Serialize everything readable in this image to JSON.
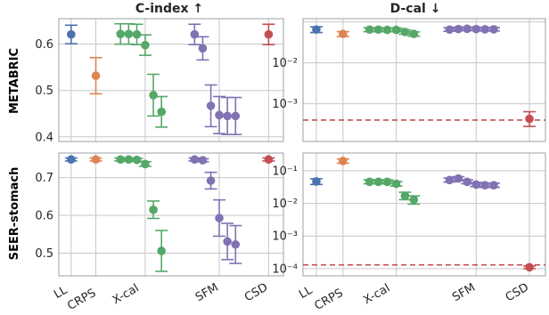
{
  "colors": {
    "LL": "#4c72b0",
    "CRPS": "#dd8452",
    "X-cal": "#55a868",
    "SFM": "#8172b3",
    "CSD": "#c44e52",
    "reference_line": "#c44e52",
    "panel_background": "#eaeaf2"
  },
  "column_titles": [
    "C-index ↑",
    "D-cal ↓"
  ],
  "row_titles": [
    "METABRIC",
    "SEER-stomach"
  ],
  "x_tick_labels": [
    "LL",
    "CRPS",
    "X-cal",
    "SFM",
    "CSD"
  ],
  "chart_data": [
    {
      "type": "scatter",
      "panel": "METABRIC / C-index",
      "ylim": [
        0.39,
        0.655
      ],
      "yscale": "linear",
      "yticks": [
        "0.4",
        "0.5",
        "0.6"
      ],
      "grid": true,
      "series": [
        {
          "method": "LL",
          "x": [
            1
          ],
          "y": [
            0.621
          ],
          "err": [
            0.02
          ]
        },
        {
          "method": "CRPS",
          "x": [
            2
          ],
          "y": [
            0.532
          ],
          "err": [
            0.039
          ]
        },
        {
          "method": "X-cal",
          "x": [
            3,
            3.33,
            3.66,
            4,
            4.33,
            4.66
          ],
          "y": [
            0.622,
            0.622,
            0.621,
            0.598,
            0.49,
            0.454
          ],
          "err": [
            0.022,
            0.022,
            0.022,
            0.022,
            0.045,
            0.033
          ]
        },
        {
          "method": "SFM",
          "x": [
            6,
            6.33,
            6.66,
            7,
            7.33,
            7.66
          ],
          "y": [
            0.621,
            0.591,
            0.467,
            0.447,
            0.445,
            0.445
          ],
          "err": [
            0.022,
            0.025,
            0.045,
            0.04,
            0.04,
            0.04
          ]
        },
        {
          "method": "CSD",
          "x": [
            9
          ],
          "y": [
            0.621
          ],
          "err": [
            0.022
          ]
        }
      ]
    },
    {
      "type": "scatter",
      "panel": "METABRIC / D-cal",
      "ylim": [
        0.00012,
        0.12
      ],
      "yscale": "log",
      "yticks": [
        "10⁻²",
        "10⁻³"
      ],
      "grid": true,
      "reference_line": {
        "y": 0.0004,
        "style": "dashed"
      },
      "series": [
        {
          "method": "LL",
          "x": [
            1
          ],
          "y": [
            0.065
          ],
          "err_low": [
            0.055
          ],
          "err_high": [
            0.076
          ]
        },
        {
          "method": "CRPS",
          "x": [
            2
          ],
          "y": [
            0.051
          ],
          "err_low": [
            0.044
          ],
          "err_high": [
            0.058
          ]
        },
        {
          "method": "X-cal",
          "x": [
            3,
            3.33,
            3.66,
            4,
            4.33,
            4.66
          ],
          "y": [
            0.065,
            0.065,
            0.064,
            0.064,
            0.057,
            0.051
          ],
          "err_low": [
            0.058,
            0.058,
            0.058,
            0.058,
            0.05,
            0.045
          ],
          "err_high": [
            0.072,
            0.072,
            0.071,
            0.071,
            0.064,
            0.057
          ]
        },
        {
          "method": "SFM",
          "x": [
            6,
            6.33,
            6.66,
            7,
            7.33,
            7.66
          ],
          "y": [
            0.065,
            0.067,
            0.068,
            0.067,
            0.066,
            0.066
          ],
          "err_low": [
            0.059,
            0.061,
            0.062,
            0.061,
            0.06,
            0.06
          ],
          "err_high": [
            0.072,
            0.074,
            0.075,
            0.074,
            0.073,
            0.073
          ]
        },
        {
          "method": "CSD",
          "x": [
            9
          ],
          "y": [
            0.00043
          ],
          "err_low": [
            0.00028
          ],
          "err_high": [
            0.00064
          ]
        }
      ]
    },
    {
      "type": "scatter",
      "panel": "SEER-stomach / C-index",
      "ylim": [
        0.44,
        0.765
      ],
      "yscale": "linear",
      "yticks": [
        "0.5",
        "0.6",
        "0.7"
      ],
      "grid": true,
      "series": [
        {
          "method": "LL",
          "x": [
            1
          ],
          "y": [
            0.748
          ],
          "err": [
            0.004
          ]
        },
        {
          "method": "CRPS",
          "x": [
            2
          ],
          "y": [
            0.748
          ],
          "err": [
            0.004
          ]
        },
        {
          "method": "X-cal",
          "x": [
            3,
            3.33,
            3.66,
            4,
            4.33,
            4.66
          ],
          "y": [
            0.748,
            0.748,
            0.747,
            0.736,
            0.615,
            0.506
          ],
          "err": [
            0.004,
            0.004,
            0.004,
            0.006,
            0.023,
            0.054
          ]
        },
        {
          "method": "SFM",
          "x": [
            6,
            6.33,
            6.66,
            7,
            7.33,
            7.66
          ],
          "y": [
            0.748,
            0.746,
            0.692,
            0.593,
            0.531,
            0.523
          ],
          "err": [
            0.004,
            0.004,
            0.022,
            0.048,
            0.048,
            0.05
          ]
        },
        {
          "method": "CSD",
          "x": [
            9
          ],
          "y": [
            0.748
          ],
          "err": [
            0.004
          ]
        }
      ]
    },
    {
      "type": "scatter",
      "panel": "SEER-stomach / D-cal",
      "ylim": [
        6e-05,
        0.35
      ],
      "yscale": "log",
      "yticks": [
        "10⁻¹",
        "10⁻²",
        "10⁻³",
        "10⁻⁴"
      ],
      "grid": true,
      "reference_line": {
        "y": 0.00013,
        "style": "dashed"
      },
      "series": [
        {
          "method": "LL",
          "x": [
            1
          ],
          "y": [
            0.047
          ],
          "err_low": [
            0.038
          ],
          "err_high": [
            0.057
          ]
        },
        {
          "method": "CRPS",
          "x": [
            2
          ],
          "y": [
            0.2
          ],
          "err_low": [
            0.17
          ],
          "err_high": [
            0.23
          ]
        },
        {
          "method": "X-cal",
          "x": [
            3,
            3.33,
            3.66,
            4,
            4.33,
            4.66
          ],
          "y": [
            0.046,
            0.046,
            0.046,
            0.04,
            0.017,
            0.013
          ],
          "err_low": [
            0.04,
            0.04,
            0.04,
            0.034,
            0.013,
            0.0095
          ],
          "err_high": [
            0.053,
            0.053,
            0.053,
            0.047,
            0.022,
            0.017
          ]
        },
        {
          "method": "SFM",
          "x": [
            6,
            6.33,
            6.66,
            7,
            7.33,
            7.66
          ],
          "y": [
            0.052,
            0.058,
            0.046,
            0.038,
            0.036,
            0.036
          ],
          "err_low": [
            0.045,
            0.05,
            0.04,
            0.033,
            0.031,
            0.031
          ],
          "err_high": [
            0.06,
            0.066,
            0.053,
            0.044,
            0.042,
            0.042
          ]
        },
        {
          "method": "CSD",
          "x": [
            9
          ],
          "y": [
            0.00011
          ],
          "err_low": [
            0.0001
          ],
          "err_high": [
            0.00012
          ]
        }
      ]
    }
  ]
}
